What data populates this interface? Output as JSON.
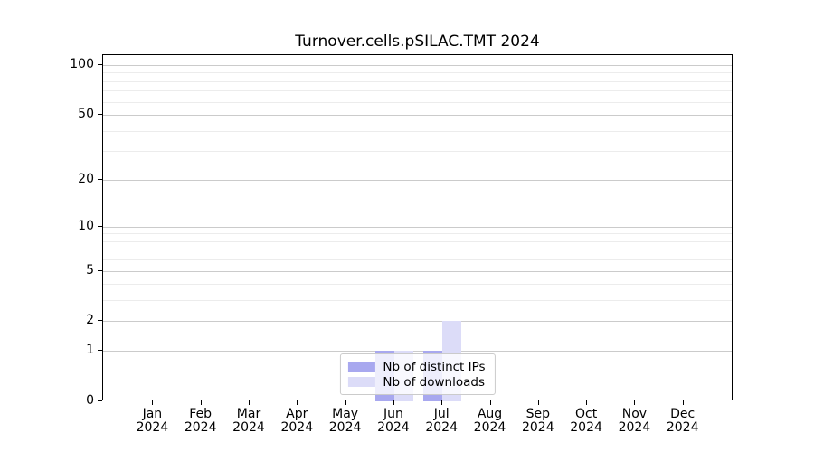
{
  "chart_data": {
    "type": "bar",
    "title": "Turnover.cells.pSILAC.TMT 2024",
    "categories": [
      "Jan\n2024",
      "Feb\n2024",
      "Mar\n2024",
      "Apr\n2024",
      "May\n2024",
      "Jun\n2024",
      "Jul\n2024",
      "Aug\n2024",
      "Sep\n2024",
      "Oct\n2024",
      "Nov\n2024",
      "Dec\n2024"
    ],
    "series": [
      {
        "name": "Nb of distinct IPs",
        "color": "#a8a8ef",
        "values": [
          0,
          0,
          0,
          0,
          0,
          1,
          1,
          0,
          0,
          0,
          0,
          0
        ]
      },
      {
        "name": "Nb of downloads",
        "color": "#dcdcf8",
        "values": [
          0,
          0,
          0,
          0,
          0,
          1,
          2,
          0,
          0,
          0,
          0,
          0
        ]
      }
    ],
    "xlabel": "",
    "ylabel": "",
    "ylim": [
      0,
      100
    ],
    "y_scale": "log(value+1)",
    "y_major_ticks": [
      0,
      1,
      2,
      5,
      10,
      20,
      50,
      100
    ],
    "y_minor_gridlines": [
      3,
      4,
      6,
      7,
      8,
      9,
      30,
      40,
      60,
      70,
      80,
      90
    ],
    "grid": "horizontal",
    "legend_position": "bottom-center",
    "colors": {
      "axis": "#000000",
      "major_grid": "#cbcbcb",
      "minor_grid": "#ececec"
    }
  }
}
